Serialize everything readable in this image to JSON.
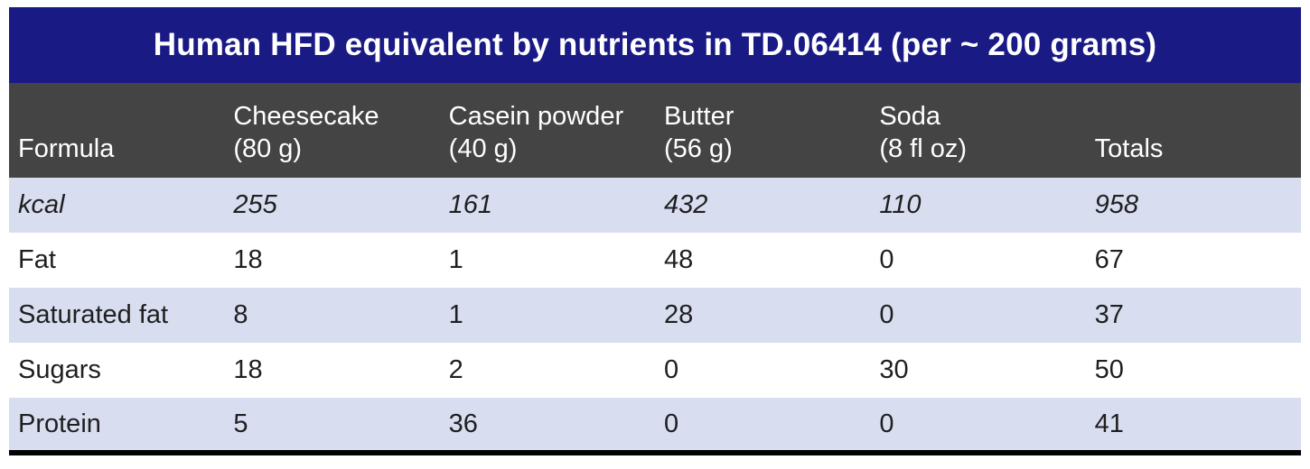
{
  "title": "Human HFD equivalent by nutrients in TD.06414 (per ~ 200 grams)",
  "colors": {
    "title_bar_bg": "#1a1a85",
    "header_row_bg": "#444444",
    "alt_row_bg": "#d8ddf0",
    "header_text": "#ffffff",
    "body_text": "#1f1f1f",
    "bottom_border": "#000000",
    "page_bg": "#ffffff"
  },
  "table": {
    "header": [
      {
        "line1": "",
        "line2": "Formula"
      },
      {
        "line1": "Cheesecake",
        "line2": "(80 g)"
      },
      {
        "line1": "Casein powder",
        "line2": "(40 g)"
      },
      {
        "line1": "Butter",
        "line2": "(56 g)"
      },
      {
        "line1": "Soda",
        "line2": "(8 fl oz)"
      },
      {
        "line1": "",
        "line2": "Totals"
      }
    ],
    "rows": [
      {
        "label": "kcal",
        "italic": true,
        "values": [
          "255",
          "161",
          "432",
          "110",
          "958"
        ]
      },
      {
        "label": "Fat",
        "italic": false,
        "values": [
          "18",
          "1",
          "48",
          "0",
          "67"
        ]
      },
      {
        "label": "Saturated fat",
        "italic": false,
        "values": [
          "8",
          "1",
          "28",
          "0",
          "37"
        ]
      },
      {
        "label": "Sugars",
        "italic": false,
        "values": [
          "18",
          "2",
          "0",
          "30",
          "50"
        ]
      },
      {
        "label": "Protein",
        "italic": false,
        "values": [
          "5",
          "36",
          "0",
          "0",
          "41"
        ]
      }
    ]
  },
  "chart_data": {
    "type": "table",
    "title": "Human HFD equivalent by nutrients in TD.06414 (per ~ 200 grams)",
    "columns": [
      "Formula",
      "Cheesecake (80 g)",
      "Casein powder (40 g)",
      "Butter (56 g)",
      "Soda (8 fl oz)",
      "Totals"
    ],
    "rows": [
      {
        "label": "kcal",
        "values": [
          255,
          161,
          432,
          110,
          958
        ]
      },
      {
        "label": "Fat",
        "values": [
          18,
          1,
          48,
          0,
          67
        ]
      },
      {
        "label": "Saturated fat",
        "values": [
          8,
          1,
          28,
          0,
          37
        ]
      },
      {
        "label": "Sugars",
        "values": [
          18,
          2,
          0,
          30,
          50
        ]
      },
      {
        "label": "Protein",
        "values": [
          5,
          36,
          0,
          0,
          41
        ]
      }
    ]
  }
}
